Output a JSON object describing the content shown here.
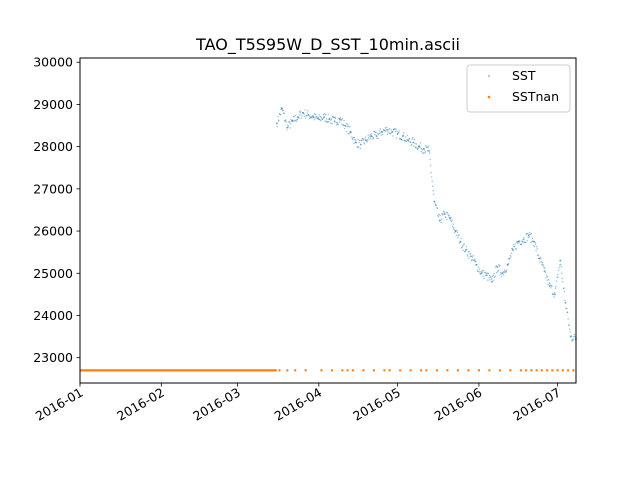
{
  "chart_data": {
    "type": "scatter",
    "title": "TAO_T5S95W_D_SST_10min.ascii",
    "xlabel": "",
    "ylabel": "",
    "x_type": "date",
    "xlim": [
      "2016-01-01",
      "2016-07-08"
    ],
    "ylim": [
      22400,
      30100
    ],
    "x_ticks": [
      "2016-01",
      "2016-02",
      "2016-03",
      "2016-04",
      "2016-05",
      "2016-06",
      "2016-07"
    ],
    "y_ticks": [
      23000,
      24000,
      25000,
      26000,
      27000,
      28000,
      29000,
      30000
    ],
    "grid": false,
    "legend": {
      "position": "top-right",
      "entries": [
        "SST",
        "SSTnan"
      ]
    },
    "colors": {
      "SST": "#1f77b4",
      "SSTnan": "#ff7f0e"
    },
    "series": [
      {
        "name": "SST",
        "x": [
          "2016-03-16",
          "2016-03-18",
          "2016-03-20",
          "2016-03-22",
          "2016-03-24",
          "2016-03-26",
          "2016-03-28",
          "2016-03-30",
          "2016-04-01",
          "2016-04-03",
          "2016-04-05",
          "2016-04-07",
          "2016-04-09",
          "2016-04-11",
          "2016-04-13",
          "2016-04-15",
          "2016-04-17",
          "2016-04-19",
          "2016-04-21",
          "2016-04-23",
          "2016-04-25",
          "2016-04-27",
          "2016-04-29",
          "2016-05-01",
          "2016-05-03",
          "2016-05-05",
          "2016-05-07",
          "2016-05-09",
          "2016-05-11",
          "2016-05-13",
          "2016-05-15",
          "2016-05-17",
          "2016-05-19",
          "2016-05-21",
          "2016-05-23",
          "2016-05-25",
          "2016-05-27",
          "2016-05-29",
          "2016-05-31",
          "2016-06-02",
          "2016-06-04",
          "2016-06-06",
          "2016-06-08",
          "2016-06-10",
          "2016-06-12",
          "2016-06-14",
          "2016-06-16",
          "2016-06-18",
          "2016-06-20",
          "2016-06-22",
          "2016-06-24",
          "2016-06-26",
          "2016-06-28",
          "2016-06-30",
          "2016-07-02",
          "2016-07-04",
          "2016-07-06",
          "2016-07-08"
        ],
        "y": [
          28550,
          28900,
          28450,
          28600,
          28700,
          28800,
          28750,
          28700,
          28650,
          28700,
          28650,
          28600,
          28650,
          28500,
          28350,
          28100,
          28050,
          28150,
          28250,
          28250,
          28350,
          28400,
          28350,
          28300,
          28250,
          28150,
          28100,
          28000,
          27950,
          27900,
          26700,
          26250,
          26400,
          26300,
          26000,
          25750,
          25550,
          25400,
          25200,
          25000,
          24950,
          24800,
          25150,
          25000,
          25200,
          25550,
          25750,
          25800,
          25900,
          25750,
          25350,
          25050,
          24700,
          24500,
          25300,
          24300,
          23500,
          23450
        ]
      },
      {
        "name": "SSTnan",
        "x_start": "2016-01-01",
        "x_end": "2016-03-16",
        "y": 22700,
        "scattered_x": [
          "2016-03-17",
          "2016-03-20",
          "2016-03-23",
          "2016-03-27",
          "2016-04-02",
          "2016-04-06",
          "2016-04-10",
          "2016-04-12",
          "2016-04-14",
          "2016-04-18",
          "2016-04-22",
          "2016-04-26",
          "2016-04-28",
          "2016-05-02",
          "2016-05-06",
          "2016-05-10",
          "2016-05-12",
          "2016-05-16",
          "2016-05-20",
          "2016-05-24",
          "2016-05-28",
          "2016-06-01",
          "2016-06-05",
          "2016-06-09",
          "2016-06-13",
          "2016-06-17",
          "2016-06-19",
          "2016-06-21",
          "2016-06-23",
          "2016-06-25",
          "2016-06-27",
          "2016-06-29",
          "2016-07-01",
          "2016-07-03",
          "2016-07-05",
          "2016-07-07"
        ]
      }
    ]
  }
}
